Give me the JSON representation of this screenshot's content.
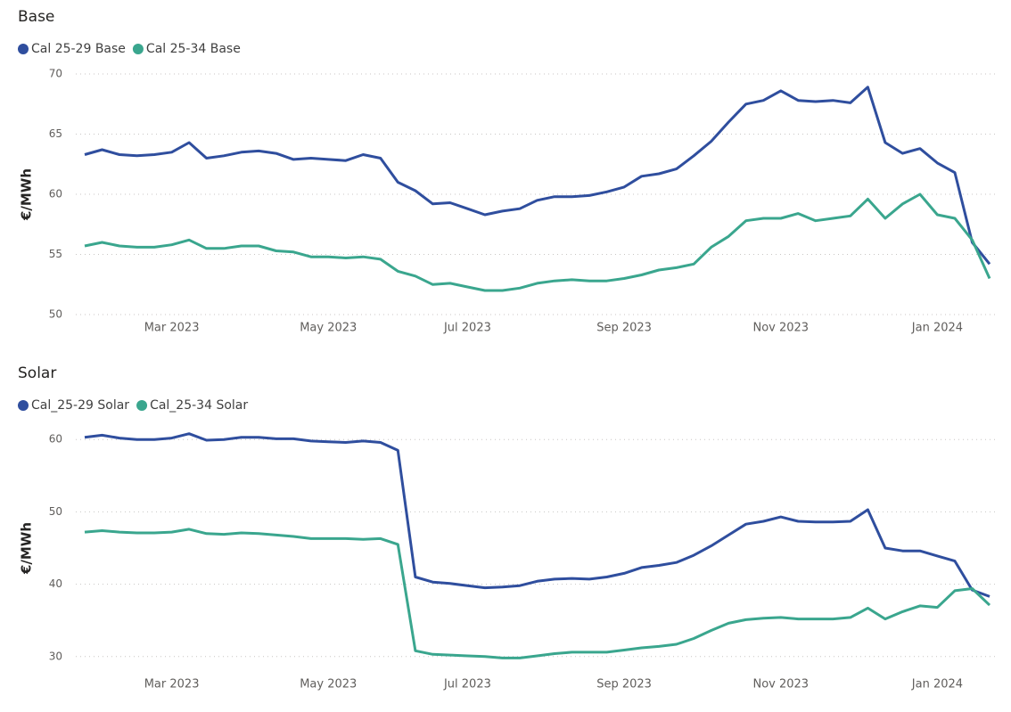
{
  "chart_data": [
    {
      "type": "line",
      "title": "Base",
      "y_label": "€/MWh",
      "categories": [
        null,
        null,
        null,
        null,
        null,
        "Mar 2023",
        null,
        null,
        null,
        null,
        null,
        null,
        null,
        null,
        "May 2023",
        null,
        null,
        null,
        null,
        null,
        null,
        null,
        "Jul 2023",
        null,
        null,
        null,
        null,
        null,
        null,
        null,
        null,
        "Sep 2023",
        null,
        null,
        null,
        null,
        null,
        null,
        null,
        null,
        "Nov 2023",
        null,
        null,
        null,
        null,
        null,
        null,
        null,
        null,
        "Jan 2024",
        null,
        null,
        null
      ],
      "series": [
        {
          "name": "Cal 25-29 Base",
          "color": "#2f4e9e",
          "values": [
            63.3,
            63.7,
            63.3,
            63.2,
            63.3,
            63.5,
            64.3,
            63.0,
            63.2,
            63.5,
            63.6,
            63.4,
            62.9,
            63.0,
            62.9,
            62.8,
            63.3,
            63.0,
            61.0,
            60.3,
            59.2,
            59.3,
            58.8,
            58.3,
            58.6,
            58.8,
            59.5,
            59.8,
            59.8,
            59.9,
            60.2,
            60.6,
            61.5,
            61.7,
            62.1,
            63.2,
            64.4,
            66.0,
            67.5,
            67.8,
            68.6,
            67.8,
            67.7,
            67.8,
            67.6,
            68.9,
            64.3,
            63.4,
            63.8,
            62.6,
            61.8,
            56.0,
            54.2
          ]
        },
        {
          "name": "Cal 25-34 Base",
          "color": "#3aa68e",
          "values": [
            55.7,
            56.0,
            55.7,
            55.6,
            55.6,
            55.8,
            56.2,
            55.5,
            55.5,
            55.7,
            55.7,
            55.3,
            55.2,
            54.8,
            54.8,
            54.7,
            54.8,
            54.6,
            53.6,
            53.2,
            52.5,
            52.6,
            52.3,
            52.0,
            52.0,
            52.2,
            52.6,
            52.8,
            52.9,
            52.8,
            52.8,
            53.0,
            53.3,
            53.7,
            53.9,
            54.2,
            55.6,
            56.5,
            57.8,
            58.0,
            58.0,
            58.4,
            57.8,
            58.0,
            58.2,
            59.6,
            58.0,
            59.2,
            60.0,
            58.3,
            58.0,
            56.2,
            53.0
          ]
        }
      ],
      "ylim": [
        50,
        70
      ],
      "yticks": [
        50,
        55,
        60,
        65,
        70
      ],
      "grid": true
    },
    {
      "type": "line",
      "title": "Solar",
      "y_label": "€/MWh",
      "categories": [
        null,
        null,
        null,
        null,
        null,
        "Mar 2023",
        null,
        null,
        null,
        null,
        null,
        null,
        null,
        null,
        "May 2023",
        null,
        null,
        null,
        null,
        null,
        null,
        null,
        "Jul 2023",
        null,
        null,
        null,
        null,
        null,
        null,
        null,
        null,
        "Sep 2023",
        null,
        null,
        null,
        null,
        null,
        null,
        null,
        null,
        "Nov 2023",
        null,
        null,
        null,
        null,
        null,
        null,
        null,
        null,
        "Jan 2024",
        null,
        null,
        null
      ],
      "series": [
        {
          "name": "Cal_25-29 Solar",
          "color": "#2f4e9e",
          "values": [
            60.3,
            60.6,
            60.2,
            60.0,
            60.0,
            60.2,
            60.8,
            59.9,
            60.0,
            60.3,
            60.3,
            60.1,
            60.1,
            59.8,
            59.7,
            59.6,
            59.8,
            59.6,
            58.5,
            41.0,
            40.3,
            40.1,
            39.8,
            39.5,
            39.6,
            39.8,
            40.4,
            40.7,
            40.8,
            40.7,
            41.0,
            41.5,
            42.3,
            42.6,
            43.0,
            44.0,
            45.3,
            46.8,
            48.3,
            48.7,
            49.3,
            48.7,
            48.6,
            48.6,
            48.7,
            50.3,
            45.0,
            44.6,
            44.6,
            43.9,
            43.2,
            39.2,
            38.3
          ]
        },
        {
          "name": "Cal_25-34 Solar",
          "color": "#3aa68e",
          "values": [
            47.2,
            47.4,
            47.2,
            47.1,
            47.1,
            47.2,
            47.6,
            47.0,
            46.9,
            47.1,
            47.0,
            46.8,
            46.6,
            46.3,
            46.3,
            46.3,
            46.2,
            46.3,
            45.5,
            30.8,
            30.3,
            30.2,
            30.1,
            30.0,
            29.8,
            29.8,
            30.1,
            30.4,
            30.6,
            30.6,
            30.6,
            30.9,
            31.2,
            31.4,
            31.7,
            32.5,
            33.6,
            34.6,
            35.1,
            35.3,
            35.4,
            35.2,
            35.2,
            35.2,
            35.4,
            36.7,
            35.2,
            36.2,
            37.0,
            36.8,
            39.1,
            39.4,
            37.1
          ]
        }
      ],
      "ylim": [
        28,
        62
      ],
      "yticks": [
        30,
        40,
        50,
        60
      ],
      "grid": true
    }
  ]
}
